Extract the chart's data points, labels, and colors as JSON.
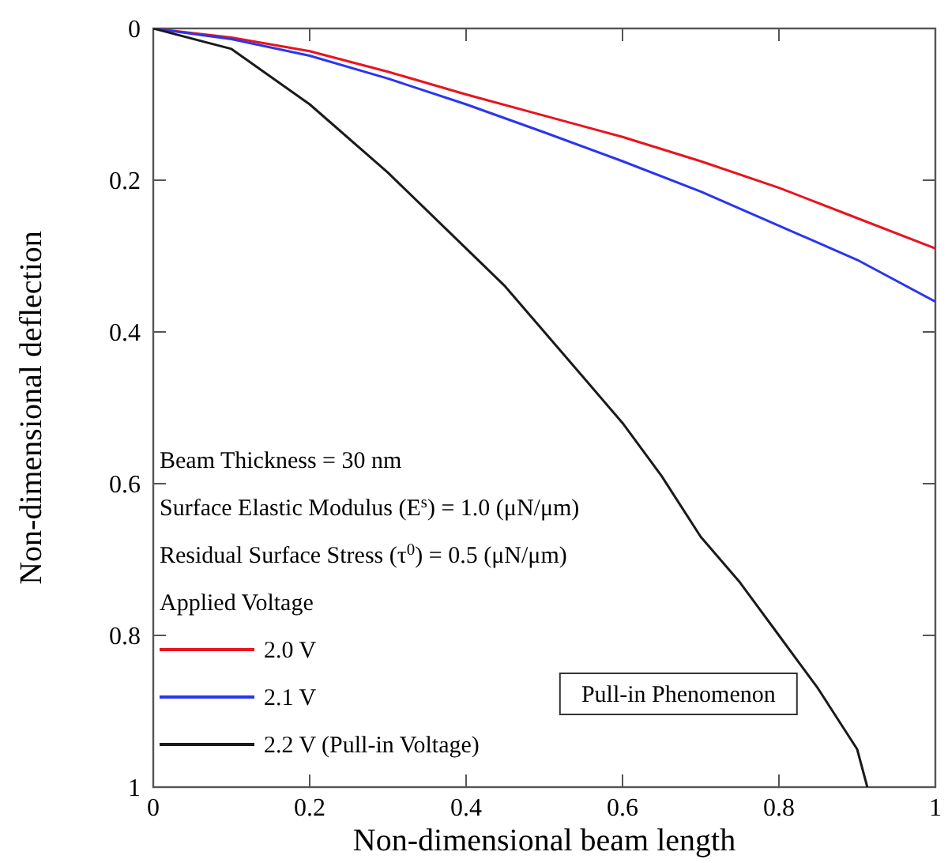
{
  "chart_data": {
    "type": "line",
    "xlabel": "Non-dimensional beam length",
    "ylabel": "Non-dimensional deflection",
    "xlim": [
      0,
      1
    ],
    "ylim": [
      1,
      0
    ],
    "xticks": [
      0,
      0.2,
      0.4,
      0.6,
      0.8,
      1
    ],
    "yticks": [
      0,
      0.2,
      0.4,
      0.6,
      0.8,
      1
    ],
    "legend_title": "Applied Voltage",
    "legend": "bottom left",
    "grid": false,
    "marker": "none",
    "line_style": "solid",
    "annotations": [
      "Beam Thickness = 30 nm",
      "Surface Elastic Modulus (E$^{s}$) = 1.0 (μN/μm)",
      "Residual Surface Stress (τ$^{0}$) = 0.5  (μN/μm)",
      "Pull-in Phenomenon"
    ],
    "series": [
      {
        "name": "2.0 V",
        "color": "#e8141e",
        "x": [
          0,
          0.1,
          0.2,
          0.3,
          0.4,
          0.5,
          0.6,
          0.7,
          0.8,
          0.9,
          1
        ],
        "values": [
          0,
          0.012,
          0.03,
          0.057,
          0.087,
          0.115,
          0.143,
          0.175,
          0.21,
          0.25,
          0.29
        ]
      },
      {
        "name": "2.1 V",
        "color": "#2a36f0",
        "x": [
          0,
          0.1,
          0.2,
          0.3,
          0.4,
          0.5,
          0.6,
          0.7,
          0.8,
          0.9,
          1
        ],
        "values": [
          0,
          0.014,
          0.036,
          0.066,
          0.1,
          0.137,
          0.175,
          0.215,
          0.26,
          0.305,
          0.36
        ]
      },
      {
        "name": "2.2 V (Pull-in Voltage)",
        "color": "#1a1a1a",
        "x": [
          0,
          0.1,
          0.2,
          0.3,
          0.4,
          0.45,
          0.5,
          0.55,
          0.6,
          0.65,
          0.7,
          0.75,
          0.8,
          0.85,
          0.9,
          0.913
        ],
        "values": [
          0,
          0.027,
          0.1,
          0.19,
          0.29,
          0.34,
          0.4,
          0.46,
          0.52,
          0.59,
          0.67,
          0.73,
          0.8,
          0.87,
          0.95,
          1
        ]
      }
    ]
  }
}
